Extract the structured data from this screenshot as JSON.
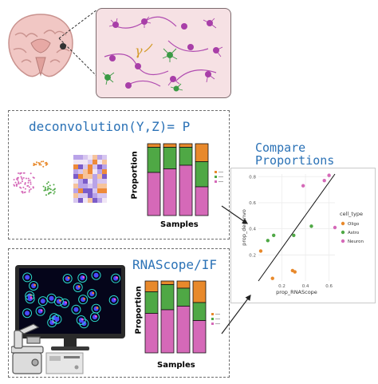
{
  "deconv_panel": {
    "formula": "deconvolution(Y,Z)= P",
    "ylabel": "Proportion",
    "xlabel": "Samples"
  },
  "rnascope_panel": {
    "title": "RNAScope/IF",
    "ylabel": "Proportion",
    "xlabel": "Samples"
  },
  "compare_panel": {
    "title_line1": "Compare",
    "title_line2": "Proportions"
  },
  "colors": {
    "blue_title": "#2b72b6",
    "oligo": "#e8892b",
    "astro": "#4fa845",
    "neuron": "#d569b8",
    "brain_tissue": "#f1c7c4",
    "inset_bg": "#f6e1e4",
    "neuron_cell": "#b04bb0",
    "astro_cell": "#3b9a45"
  },
  "stacked_bars_deconv": [
    {
      "oligo": 0.05,
      "astro": 0.35,
      "neuron": 0.6
    },
    {
      "oligo": 0.05,
      "astro": 0.3,
      "neuron": 0.65
    },
    {
      "oligo": 0.05,
      "astro": 0.25,
      "neuron": 0.7
    },
    {
      "oligo": 0.25,
      "astro": 0.35,
      "neuron": 0.4
    }
  ],
  "stacked_bars_rnascope": [
    {
      "oligo": 0.15,
      "astro": 0.3,
      "neuron": 0.55
    },
    {
      "oligo": 0.05,
      "astro": 0.35,
      "neuron": 0.6
    },
    {
      "oligo": 0.1,
      "astro": 0.25,
      "neuron": 0.65
    },
    {
      "oligo": 0.3,
      "astro": 0.25,
      "neuron": 0.45
    }
  ],
  "chart_data": {
    "type": "scatter",
    "xlabel": "prop_RNAScope",
    "ylabel": "prop_deconvo",
    "xlim": [
      0,
      0.65
    ],
    "ylim": [
      0,
      0.82
    ],
    "x_ticks": [
      "0.2",
      "0.4",
      "0.6"
    ],
    "y_ticks": [
      "0.2",
      "0.4",
      "0.6",
      "0.8"
    ],
    "legend_title": "cell_type",
    "legend_position": "right",
    "grid": true,
    "series": [
      {
        "name": "Oligo",
        "color": "#e8892b",
        "points": [
          [
            0.02,
            0.23
          ],
          [
            0.12,
            0.02
          ],
          [
            0.29,
            0.08
          ],
          [
            0.31,
            0.07
          ]
        ]
      },
      {
        "name": "Astro",
        "color": "#4fa845",
        "points": [
          [
            0.08,
            0.31
          ],
          [
            0.13,
            0.35
          ],
          [
            0.3,
            0.35
          ],
          [
            0.45,
            0.42
          ]
        ]
      },
      {
        "name": "Neuron",
        "color": "#d569b8",
        "points": [
          [
            0.38,
            0.73
          ],
          [
            0.56,
            0.77
          ],
          [
            0.6,
            0.81
          ],
          [
            0.65,
            0.41
          ]
        ]
      }
    ],
    "fit_line": [
      [
        0.0,
        0.0
      ],
      [
        0.65,
        0.82
      ]
    ]
  }
}
